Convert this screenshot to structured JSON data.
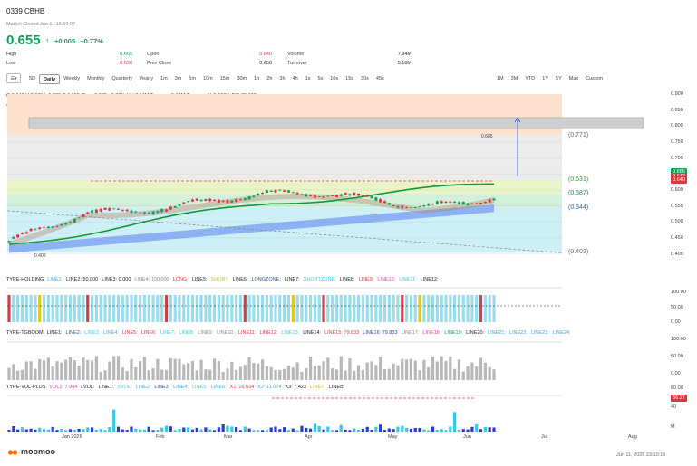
{
  "header": {
    "title": "0339  CBHB",
    "market_status": "Market Closed Jun 11 16:59:07",
    "price": "0.655",
    "arrow": "↑",
    "change": "+0.005",
    "change_pct": "+0.77%",
    "stats": {
      "high_label": "High",
      "high": "0.665",
      "low_label": "Low",
      "low": "0.630",
      "open_label": "Open",
      "open": "0.640",
      "prev_close_label": "Prev Close",
      "prev_close": "0.650",
      "volume_label": "Volume",
      "volume": "7.94M",
      "turnover_label": "Turnover",
      "turnover": "5.18M"
    }
  },
  "toolbar": {
    "menu_icon": "list-icon",
    "items": [
      "5D",
      "Daily",
      "Weekly",
      "Monthly",
      "Quarterly",
      "Yearly",
      "1m",
      "3m",
      "5m",
      "10m",
      "15m",
      "30m",
      "1h",
      "2h",
      "3h",
      "4h",
      "1s",
      "5s",
      "10s",
      "15s",
      "30s",
      "45s"
    ],
    "active": "Daily",
    "ranges": [
      "1M",
      "3M",
      "YTD",
      "1Y",
      "5Y",
      "Max",
      "Custom"
    ]
  },
  "info_line": "O 0.640   H 0.665   L 0.630   C 0.655   Chg +0.005   +0.77%   Vol 7.94M   Turnover 5.18M   Turnover % 1.600%   P/E 25.192",
  "collapse_label": "7",
  "price_axis": [
    "0.900",
    "0.850",
    "0.800",
    "0.750",
    "0.700",
    "0.650",
    "0.600",
    "0.550",
    "0.500",
    "0.450",
    "0.400"
  ],
  "price_badges": [
    {
      "value": "0.655",
      "color": "#0fa15b"
    },
    {
      "value": "0.642",
      "color": "#e0353d"
    },
    {
      "value": "0.640",
      "color": "#e0353d"
    }
  ],
  "level_labels": [
    {
      "text": "(0.771)",
      "color": "#666"
    },
    {
      "text": "(0.631)",
      "color": "#3a9a3a"
    },
    {
      "text": "(0.587)",
      "color": "#2a7a5a"
    },
    {
      "text": "(0.544)",
      "color": "#2a6aa0"
    },
    {
      "text": "(0.403)",
      "color": "#666"
    }
  ],
  "annotations": {
    "high_mark": "0.685",
    "low_mark": "0.408"
  },
  "months": [
    "Jan 2026",
    "Feb",
    "Mar",
    "Apr",
    "May",
    "Jun",
    "Jul",
    "Aug"
  ],
  "indicators": {
    "holding": {
      "name": "TYPE-HOLDING",
      "lines": [
        {
          "t": "LINE1:",
          "c": "#3aa7e0"
        },
        {
          "t": "LINE2: 50.000",
          "c": "#222"
        },
        {
          "t": "LINE3: 0.000",
          "c": "#222"
        },
        {
          "t": "LINE4: 100.000",
          "c": "#888"
        },
        {
          "t": "LONG:",
          "c": "#e0353d"
        },
        {
          "t": "LINE5:",
          "c": "#222"
        },
        {
          "t": "SHORT:",
          "c": "#e0c000"
        },
        {
          "t": "LINE6:",
          "c": "#222"
        },
        {
          "t": "LONGZONE:",
          "c": "#2a4aa0"
        },
        {
          "t": "LINE7:",
          "c": "#222"
        },
        {
          "t": "SHORTZONE:",
          "c": "#3ac8e0"
        },
        {
          "t": "LINE8:",
          "c": "#222"
        },
        {
          "t": "LINE9:",
          "c": "#e0353d"
        },
        {
          "t": "LINE10:",
          "c": "#e040a0"
        },
        {
          "t": "LINE11:",
          "c": "#3ac8e0"
        },
        {
          "t": "LINE12:",
          "c": "#222"
        }
      ],
      "axis": [
        "100.00",
        "50.00",
        "0.00"
      ]
    },
    "tgboom": {
      "name": "TYPE-TGBOOM",
      "lines": [
        {
          "t": "LINE1:",
          "c": "#222"
        },
        {
          "t": "LINE2:",
          "c": "#2a4aa0"
        },
        {
          "t": "LINE3:",
          "c": "#3ac8e0"
        },
        {
          "t": "LINE4:",
          "c": "#3aa7e0"
        },
        {
          "t": "LINE5:",
          "c": "#e0353d"
        },
        {
          "t": "LINE6:",
          "c": "#e0353d"
        },
        {
          "t": "LINE7:",
          "c": "#3ac8e0"
        },
        {
          "t": "LINE8:",
          "c": "#3ac8e0"
        },
        {
          "t": "LINE9:",
          "c": "#888"
        },
        {
          "t": "LINE10:",
          "c": "#888"
        },
        {
          "t": "LINE11:",
          "c": "#e0353d"
        },
        {
          "t": "LINE12:",
          "c": "#e0353d"
        },
        {
          "t": "LINE13:",
          "c": "#3ac8e0"
        },
        {
          "t": "LINE14:",
          "c": "#222"
        },
        {
          "t": "LINE15: 79.833",
          "c": "#e0353d"
        },
        {
          "t": "LINE16: 79.833",
          "c": "#2a4aa0"
        },
        {
          "t": "LINE17:",
          "c": "#888"
        },
        {
          "t": "LINE18:",
          "c": "#e040a0"
        },
        {
          "t": "LINE19:",
          "c": "#0fa15b"
        },
        {
          "t": "LINE20:",
          "c": "#222"
        },
        {
          "t": "LINE21:",
          "c": "#3aa7e0"
        },
        {
          "t": "LINE22:",
          "c": "#3aa7e0"
        },
        {
          "t": "LINE23:",
          "c": "#3aa7e0"
        },
        {
          "t": "LINE24:",
          "c": "#3aa7e0"
        }
      ],
      "axis": [
        "100.00",
        "50.00",
        "0.00"
      ]
    },
    "volplus": {
      "name": "TYPE-VOL-PLUS",
      "lines": [
        {
          "t": "VOL1: 7.944",
          "c": "#e040a0"
        },
        {
          "t": "LVOL:",
          "c": "#222"
        },
        {
          "t": "LINE1:",
          "c": "#222"
        },
        {
          "t": "SVOL:",
          "c": "#3ac8e0"
        },
        {
          "t": "LINE2:",
          "c": "#3aa7e0"
        },
        {
          "t": "LINE3:",
          "c": "#2a4aa0"
        },
        {
          "t": "LINE4:",
          "c": "#3aa7e0"
        },
        {
          "t": "LINE5:",
          "c": "#3ac8e0"
        },
        {
          "t": "LINE6:",
          "c": "#3aa7e0"
        },
        {
          "t": "X1: 26.634",
          "c": "#e0353d"
        },
        {
          "t": "X2: 11.074",
          "c": "#3aa7e0"
        },
        {
          "t": "X3: 7.423",
          "c": "#222"
        },
        {
          "t": "LINE7:",
          "c": "#e0c000"
        },
        {
          "t": "LINE8:",
          "c": "#222"
        }
      ],
      "axis": [
        "80.00",
        "40",
        "M"
      ],
      "badge": "56.27"
    }
  },
  "footer": {
    "brand": "moomoo",
    "timestamp": "Jun 11, 2026 23:10:16"
  }
}
